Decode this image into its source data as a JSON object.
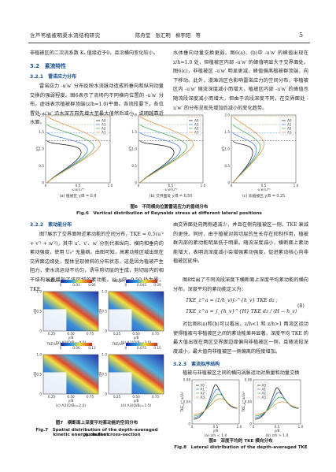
{
  "header": {
    "running_title": "含芦苇植被明渠水流结构研究",
    "authors": "陈舟莹　张汇明　柳宇阳　等",
    "page_number": "5"
  },
  "left_top": {
    "p1": "非植被区的二次流系数 Kₛ 值接近于0，且沿横向变化较小。",
    "s32": "3.2　紊流特性",
    "s321": "3.2.1　雷诺应力分布",
    "p2": "雷诺应力 -u′w′ 分布反映水流脉动造成的垂向和纵向动量交换的强弱程度。图6表示了流场内不同横向位置的 -u′w′ 分布，虚线表示植被群顶端(z/h=1.0)平面。各流段要下，各位置处 -u′w′ 沿水深方向先增大至最大值然后减小，说明越靠近水面，"
  },
  "right_top": {
    "p1": "水体垂向动量交换更弱。图6(a)、(b)中 -u′w′ 的峰值出现在 z/h=1.0 处，但植被区内部 -u′w′ 的峰值明显大于交界面处。图6(c)，非植被区 -u′w′ 明显更减，峰值偏离植被群顶端，向下移动。此外，漫滩流区仓影响雷诺应力的空间分布，非植被区内 -u′w′ 随流深度减小而增大，植被区内部 -u′w′ 的峰值也随流段深度减小而增大，但由于流段深度不同，在交界面处 -u′w′ 的分布呈现先增加后减小的变化趋势。"
  },
  "figure6": {
    "panels": [
      "(a) 植被区 y/B = 0.9",
      "(b) 交界面处 y/B = 0.50",
      "(c) 非植被区 y/B = 0.25"
    ],
    "legend": [
      "A0",
      "A1",
      "A2",
      "A3"
    ],
    "y_axis_label": "z/h",
    "x_axis_label": "-u′w′/u*²",
    "yticks": [
      "0",
      "0.5",
      "1.0",
      "1.5",
      "2.0"
    ],
    "xticks": [
      "0",
      "0.5",
      "1.0"
    ],
    "caption_cn": "图6　不同横向位置雷诺应力的垂线分布",
    "caption_en": "Fig.6　Vertical distribution of Reynolds stress at different lateral positions"
  },
  "left_mid": {
    "s322": "3.2.2　紊动能分布",
    "p1": "图7展示了交界面附近紊动能的空间分布，TKE = 0.5(u′² + v′² + w′²)，其中 u′、v′、w′ 分别代表纵向、横向和垂向的紊动强度，使用 U₀² 无量纲。由图可知，高紊动能区域出现在交界面边缘处，整体呈现倾斜的分布状态，这是因为植被产生阻力，使水流运动不均匀，诱导剪切层的生成，剪切层内的相干结构显著增加了该区域的紊动能。以 y/B=0.50 处为界，TKE"
  },
  "figure7": {
    "colorbar_title": "TKE/U₀²",
    "panels": [
      {
        "label": "(a) A0(Q/B₀=4.0)",
        "cbar_ticks": [
          "0",
          "0.03",
          "0.06"
        ]
      },
      {
        "label": "(b) A1(Q/B₀=3.0)",
        "cbar_ticks": [
          "0",
          "0.045",
          "0.09"
        ]
      },
      {
        "label": "(c) A2(Q/B₀=2.0)",
        "cbar_ticks": [
          "0",
          "0.06",
          "0.12"
        ]
      },
      {
        "label": "(d) A3(Q/B₀=1.5)",
        "cbar_ticks": [
          "0",
          "0.075",
          "0.15"
        ]
      }
    ],
    "y_axis_label": "z/H",
    "x_axis_label": "y/B",
    "yticks": [
      "0",
      "0.5",
      "1.0"
    ],
    "xticks": [
      "0.25",
      "0.50",
      "0.75"
    ],
    "caption_cn": "图7　横断面上深度平均紊动能的空间分布",
    "caption_en_1": "Fig.7　Spatial distribution of the depth-averaged turbulent",
    "caption_en_2": "kinetic energy on the cross-section"
  },
  "right_mid": {
    "p1": "由交界面处向两侧递减少，并且在侧向植被区一侧，TKE 衰减的更快。同时，由于植被对剪切层的生长存在抑制作用，植被群内部的紊动能明显低于明渠。随流深度减小，横断面上紊动能增大，表明流深度减小会增强紊动强度，促进紊动核心向非植被区延伸。",
    "p2": "图8给出了不同流段深度下横断面上深度平均紊动能的横向分布，深度平均的紊动能定义为：",
    "equation_left": "TKE_z^a = (1/h_v)∫₀^{h_v} TKE dz ;",
    "equation_right": "TKE_z^a = ∫_{h_v}^{H} TKE dz / (H − h_v)",
    "equation_number": "(8)",
    "p3": "对比图8(a)和(b)可以看出，z/h<1 和 z/h>1 两流区运动使得植被与非植被区之间的紊动能差异显著，深度平均 TKE 的最大值出现在两区交界面边缘偏向非植被区一侧，且随流段深度减小，最大值向非植被区一侧偏离的程度增加。",
    "s323": "3.2.3　紊流拟序结构",
    "p4": "植被与非植被区之间的横向涡脉运动对质量和动量交换"
  },
  "figure8": {
    "panels": [
      "(a) z/h < 1.0",
      "(b) z/h > 1.0"
    ],
    "legend": [
      "A0",
      "A1",
      "A2",
      "A3"
    ],
    "y_axis_label": "TKE_z^a/U₀²",
    "x_axis_label": "y/B",
    "yticks": [
      "0",
      "0.04",
      "0.08"
    ],
    "xticks": [
      "0",
      "0.5",
      "1.0"
    ],
    "caption_cn": "图8　深度平均的 TKE 横向分布",
    "caption_en": "Fig.8　Lateral distribution of the depth-averaged TKE"
  }
}
